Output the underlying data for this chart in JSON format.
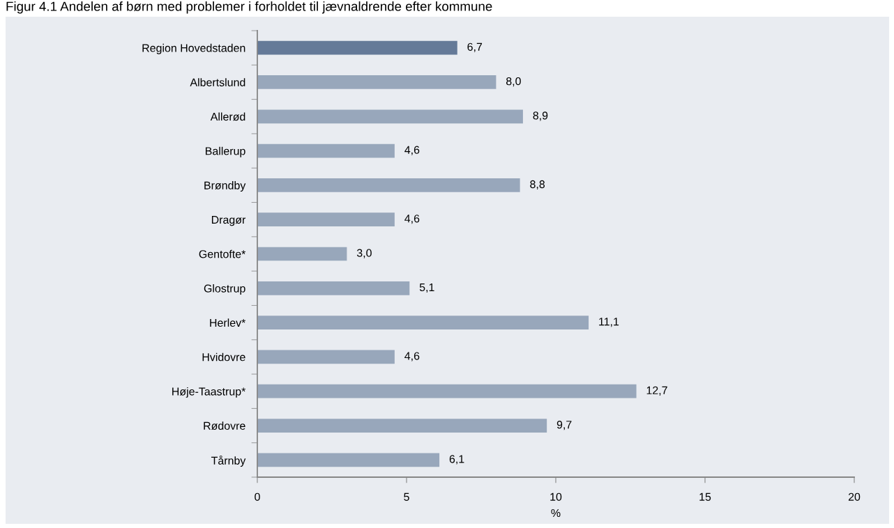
{
  "chart_data": {
    "type": "bar",
    "orientation": "horizontal",
    "title": "Figur 4.1 Andelen af børn med problemer i forholdet til jævnaldrende efter kommune",
    "xlabel": "%",
    "categories": [
      "Region Hovedstaden",
      "Albertslund",
      "Allerød",
      "Ballerup",
      "Brøndby",
      "Dragør",
      "Gentofte*",
      "Glostrup",
      "Herlev*",
      "Hvidovre",
      "Høje-Taastrup*",
      "Rødovre",
      "Tårnby"
    ],
    "values": [
      6.7,
      8.0,
      8.9,
      4.6,
      8.8,
      4.6,
      3.0,
      5.1,
      11.1,
      4.6,
      12.7,
      9.7,
      6.1
    ],
    "value_labels": [
      "6,7",
      "8,0",
      "8,9",
      "4,6",
      "8,8",
      "4,6",
      "3,0",
      "5,1",
      "11,1",
      "4,6",
      "12,7",
      "9,7",
      "6,1"
    ],
    "colors": [
      "#657a98",
      "#98a7bb",
      "#98a7bb",
      "#98a7bb",
      "#98a7bb",
      "#98a7bb",
      "#98a7bb",
      "#98a7bb",
      "#98a7bb",
      "#98a7bb",
      "#98a7bb",
      "#98a7bb",
      "#98a7bb"
    ],
    "xlim": [
      0,
      20
    ],
    "xticks": [
      0,
      5,
      10,
      15,
      20
    ]
  }
}
